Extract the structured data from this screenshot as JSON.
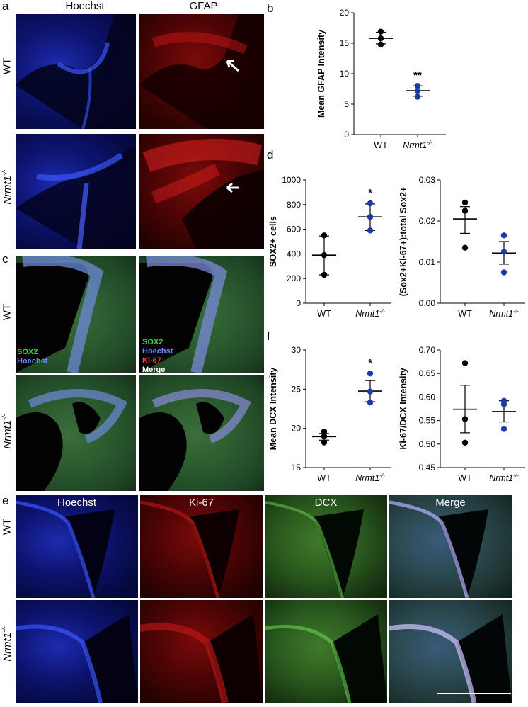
{
  "panels": {
    "a": {
      "letter": "a",
      "columns": [
        "Hoechst",
        "GFAP"
      ],
      "rows": [
        "WT",
        "Nrmt1-/-"
      ]
    },
    "c": {
      "letter": "c",
      "rows": [
        "WT",
        "Nrmt1-/-"
      ],
      "legend_left": [
        "SOX2",
        "Hoechst"
      ],
      "legend_right": [
        "SOX2",
        "Hoechst",
        "Ki-67",
        "Merge"
      ]
    },
    "e": {
      "letter": "e",
      "columns": [
        "Hoechst",
        "Ki-67",
        "DCX",
        "Merge"
      ],
      "rows": [
        "WT",
        "Nrmt1-/-"
      ]
    }
  },
  "colors": {
    "wt_point": "#000000",
    "ko_point": "#1a3aa8",
    "hoechst": "#1d2bb0",
    "gfap": "#b00f0f",
    "dcx": "#3f7a2a"
  },
  "chart_data": [
    {
      "panel": "b",
      "type": "scatter",
      "ylabel": "Mean GFAP Intensity",
      "categories": [
        "WT",
        "Nrmt1-/-"
      ],
      "ylim": [
        0,
        20
      ],
      "yticks": [
        0,
        5,
        10,
        15,
        20
      ],
      "series": [
        {
          "category": "WT",
          "points": [
            16.9,
            15.8,
            14.8
          ],
          "mean": 15.8,
          "sem_low": 14.9,
          "sem_high": 16.8
        },
        {
          "category": "Nrmt1-/-",
          "points": [
            8.0,
            7.2,
            6.2
          ],
          "mean": 7.2,
          "sem_low": 6.3,
          "sem_high": 8.0
        }
      ],
      "annotation": {
        "category": "Nrmt1-/-",
        "text": "**"
      }
    },
    {
      "panel": "d",
      "type": "scatter",
      "ylabel": "SOX2+ cells",
      "categories": [
        "WT",
        "Nrmt1-/-"
      ],
      "ylim": [
        0,
        1000
      ],
      "yticks": [
        0,
        200,
        400,
        600,
        800,
        1000
      ],
      "series": [
        {
          "category": "WT",
          "points": [
            550,
            390,
            230
          ],
          "mean": 390,
          "sem_low": 230,
          "sem_high": 545
        },
        {
          "category": "Nrmt1-/-",
          "points": [
            810,
            700,
            590
          ],
          "mean": 700,
          "sem_low": 590,
          "sem_high": 805
        }
      ],
      "annotation": {
        "category": "Nrmt1-/-",
        "text": "*"
      }
    },
    {
      "panel": "d2",
      "type": "scatter",
      "ylabel": "(Sox2+Ki-67+):total Sox2+",
      "categories": [
        "WT",
        "Nrmt1-/-"
      ],
      "ylim": [
        0,
        0.03
      ],
      "yticks": [
        0.0,
        0.01,
        0.02,
        0.03
      ],
      "series": [
        {
          "category": "WT",
          "points": [
            0.0245,
            0.0225,
            0.0135
          ],
          "mean": 0.0205,
          "sem_low": 0.017,
          "sem_high": 0.0235
        },
        {
          "category": "Nrmt1-/-",
          "points": [
            0.0165,
            0.0125,
            0.0075
          ],
          "mean": 0.0122,
          "sem_low": 0.0095,
          "sem_high": 0.015
        }
      ]
    },
    {
      "panel": "f",
      "type": "scatter",
      "ylabel": "Mean DCX Intensity",
      "categories": [
        "WT",
        "Nrmt1-/-"
      ],
      "ylim": [
        15,
        30
      ],
      "yticks": [
        15,
        20,
        25,
        30
      ],
      "series": [
        {
          "category": "WT",
          "points": [
            19.6,
            19.0,
            18.2
          ],
          "mean": 18.95,
          "sem_low": 18.5,
          "sem_high": 19.35
        },
        {
          "category": "Nrmt1-/-",
          "points": [
            27.0,
            24.7,
            23.3
          ],
          "mean": 24.75,
          "sem_low": 23.4,
          "sem_high": 26.1
        }
      ],
      "annotation": {
        "category": "Nrmt1-/-",
        "text": "*"
      }
    },
    {
      "panel": "f2",
      "type": "scatter",
      "ylabel": "Ki-67/DCX Intensity",
      "categories": [
        "WT",
        "Nrmt1-/-"
      ],
      "ylim": [
        0.45,
        0.7
      ],
      "yticks": [
        0.45,
        0.5,
        0.55,
        0.6,
        0.65,
        0.7
      ],
      "series": [
        {
          "category": "WT",
          "points": [
            0.672,
            0.553,
            0.503
          ],
          "mean": 0.574,
          "sem_low": 0.524,
          "sem_high": 0.625
        },
        {
          "category": "Nrmt1-/-",
          "points": [
            0.592,
            0.585,
            0.532
          ],
          "mean": 0.569,
          "sem_low": 0.547,
          "sem_high": 0.592
        }
      ]
    }
  ],
  "chart_labels": {
    "b": "b",
    "d": "d",
    "f": "f",
    "wt": "WT",
    "ko": "Nrmt1",
    "ko_sup": "-/-"
  }
}
